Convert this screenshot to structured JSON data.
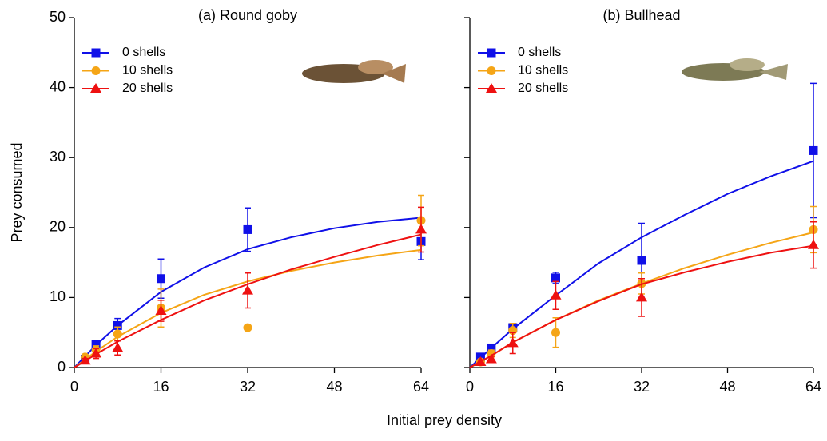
{
  "x_label": "Initial prey density",
  "y_label": "Prey consumed",
  "chart_data": [
    {
      "type": "scatter",
      "title": "(a) Round goby",
      "xlim": [
        0,
        64
      ],
      "ylim": [
        0,
        50
      ],
      "xticks": [
        0,
        16,
        32,
        48,
        64
      ],
      "yticks": [
        0,
        10,
        20,
        30,
        40,
        50
      ],
      "series": [
        {
          "name": "0 shells",
          "color": "#1010e8",
          "marker": "square",
          "x": [
            2,
            4,
            8,
            16,
            32,
            64
          ],
          "values": [
            1.2,
            3.3,
            6,
            12.7,
            19.7,
            18
          ],
          "errors": [
            0.3,
            0.5,
            1,
            2.8,
            3.1,
            2.6
          ],
          "fit": {
            "x": [
              0,
              4,
              8,
              16,
              24,
              32,
              40,
              48,
              56,
              64
            ],
            "values": [
              0,
              3.2,
              6,
              10.8,
              14.3,
              16.9,
              18.6,
              19.9,
              20.8,
              21.4
            ]
          }
        },
        {
          "name": "10 shells",
          "color": "#f5a516",
          "marker": "circle",
          "x": [
            2,
            4,
            8,
            16,
            32,
            64
          ],
          "values": [
            1.5,
            2.5,
            4.8,
            8.5,
            5.7,
            21
          ],
          "errors": [
            0.3,
            0.6,
            1,
            2.7,
            null,
            3.6
          ],
          "fit": {
            "x": [
              0,
              4,
              8,
              16,
              24,
              32,
              40,
              48,
              56,
              64
            ],
            "values": [
              0,
              2.3,
              4.4,
              7.8,
              10.4,
              12.3,
              13.8,
              15,
              16,
              16.8
            ]
          }
        },
        {
          "name": "20 shells",
          "color": "#ee1111",
          "marker": "triangle",
          "x": [
            2,
            4,
            8,
            16,
            32,
            64
          ],
          "values": [
            1,
            2,
            2.8,
            8.1,
            11,
            19.7
          ],
          "errors": [
            0.3,
            0.7,
            1,
            1.5,
            2.5,
            3.2
          ],
          "fit": {
            "x": [
              0,
              4,
              8,
              16,
              24,
              32,
              40,
              48,
              56,
              64
            ],
            "values": [
              0,
              1.9,
              3.7,
              6.8,
              9.6,
              11.9,
              14,
              15.8,
              17.5,
              19
            ]
          }
        }
      ]
    },
    {
      "type": "scatter",
      "title": "(b) Bullhead",
      "xlim": [
        0,
        64
      ],
      "ylim": [
        0,
        50
      ],
      "xticks": [
        0,
        16,
        32,
        48,
        64
      ],
      "yticks": [
        0,
        10,
        20,
        30,
        40,
        50
      ],
      "series": [
        {
          "name": "0 shells",
          "color": "#1010e8",
          "marker": "square",
          "x": [
            2,
            4,
            8,
            16,
            32,
            64
          ],
          "values": [
            1.5,
            2.8,
            5.7,
            12.8,
            15.3,
            31
          ],
          "errors": [
            0.3,
            0.5,
            0.6,
            0.8,
            5.3,
            9.6
          ],
          "fit": {
            "x": [
              0,
              4,
              8,
              16,
              24,
              32,
              40,
              48,
              56,
              64
            ],
            "values": [
              0,
              2.8,
              5.5,
              10.3,
              14.9,
              18.6,
              21.8,
              24.8,
              27.3,
              29.5
            ]
          }
        },
        {
          "name": "10 shells",
          "color": "#f5a516",
          "marker": "circle",
          "x": [
            2,
            4,
            8,
            16,
            32,
            64
          ],
          "values": [
            0.8,
            2,
            5.3,
            5,
            12,
            19.7
          ],
          "errors": [
            0.3,
            0.5,
            1,
            2.1,
            1.5,
            3.3
          ],
          "fit": {
            "x": [
              0,
              4,
              8,
              16,
              24,
              32,
              40,
              48,
              56,
              64
            ],
            "values": [
              0,
              1.7,
              3.6,
              6.8,
              9.6,
              12,
              14.2,
              16.1,
              17.8,
              19.3
            ]
          }
        },
        {
          "name": "20 shells",
          "color": "#ee1111",
          "marker": "triangle",
          "x": [
            2,
            4,
            8,
            16,
            32,
            64
          ],
          "values": [
            0.8,
            1.2,
            3.5,
            10.3,
            10,
            17.5
          ],
          "errors": [
            0.3,
            0.4,
            1.5,
            2,
            2.7,
            3.3
          ],
          "fit": {
            "x": [
              0,
              4,
              8,
              16,
              24,
              32,
              40,
              48,
              56,
              64
            ],
            "values": [
              0,
              1.7,
              3.6,
              6.8,
              9.5,
              11.9,
              13.6,
              15.1,
              16.4,
              17.4
            ]
          }
        }
      ]
    }
  ]
}
